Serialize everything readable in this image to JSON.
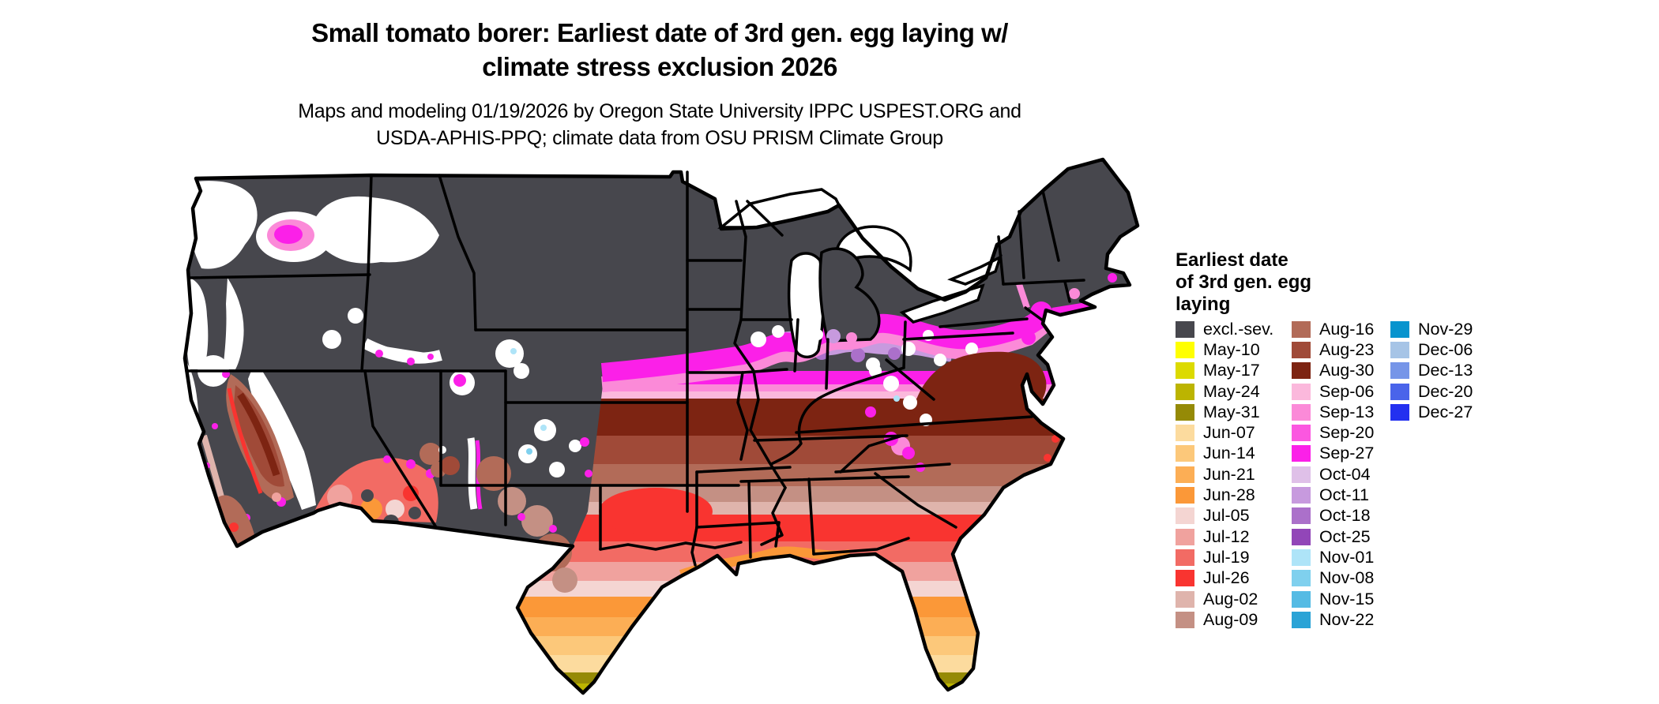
{
  "title": {
    "line1": "Small tomato borer: Earliest date of 3rd gen. egg laying w/",
    "line2": "climate stress exclusion 2026"
  },
  "subtitle": {
    "line1": "Maps and modeling 01/19/2026 by Oregon State University IPPC USPEST.ORG and",
    "line2": "USDA-APHIS-PPQ; climate data from OSU PRISM Climate Group"
  },
  "legend": {
    "title_lines": [
      "Earliest date",
      "of 3rd gen. egg",
      "laying"
    ],
    "columns": [
      [
        {
          "label": "excl.-sev.",
          "key": "excl"
        },
        {
          "label": "May-10",
          "key": "may10"
        },
        {
          "label": "May-17",
          "key": "may17"
        },
        {
          "label": "May-24",
          "key": "may24"
        },
        {
          "label": "May-31",
          "key": "may31"
        },
        {
          "label": "Jun-07",
          "key": "jun07"
        },
        {
          "label": "Jun-14",
          "key": "jun14"
        },
        {
          "label": "Jun-21",
          "key": "jun21"
        },
        {
          "label": "Jun-28",
          "key": "jun28"
        },
        {
          "label": "Jul-05",
          "key": "jul05"
        },
        {
          "label": "Jul-12",
          "key": "jul12"
        },
        {
          "label": "Jul-19",
          "key": "jul19"
        },
        {
          "label": "Jul-26",
          "key": "jul26"
        },
        {
          "label": "Aug-02",
          "key": "aug02"
        },
        {
          "label": "Aug-09",
          "key": "aug09"
        }
      ],
      [
        {
          "label": "Aug-16",
          "key": "aug16"
        },
        {
          "label": "Aug-23",
          "key": "aug23"
        },
        {
          "label": "Aug-30",
          "key": "aug30"
        },
        {
          "label": "Sep-06",
          "key": "sep06"
        },
        {
          "label": "Sep-13",
          "key": "sep13"
        },
        {
          "label": "Sep-20",
          "key": "sep20"
        },
        {
          "label": "Sep-27",
          "key": "sep27"
        },
        {
          "label": "Oct-04",
          "key": "oct04"
        },
        {
          "label": "Oct-11",
          "key": "oct11"
        },
        {
          "label": "Oct-18",
          "key": "oct18"
        },
        {
          "label": "Oct-25",
          "key": "oct25"
        },
        {
          "label": "Nov-01",
          "key": "nov01"
        },
        {
          "label": "Nov-08",
          "key": "nov08"
        },
        {
          "label": "Nov-15",
          "key": "nov15"
        },
        {
          "label": "Nov-22",
          "key": "nov22"
        }
      ],
      [
        {
          "label": "Nov-29",
          "key": "nov29"
        },
        {
          "label": "Dec-06",
          "key": "dec06"
        },
        {
          "label": "Dec-13",
          "key": "dec13"
        },
        {
          "label": "Dec-20",
          "key": "dec20"
        },
        {
          "label": "Dec-27",
          "key": "dec27"
        }
      ]
    ]
  },
  "colors": {
    "excl": "#47474d",
    "may10": "#ffff00",
    "may17": "#dcda00",
    "may24": "#bcb400",
    "may31": "#958a06",
    "jun07": "#fcdb9e",
    "jun14": "#fcc87a",
    "jun21": "#fcae55",
    "jun28": "#fb9838",
    "jul05": "#f4d5d2",
    "jul12": "#f0a29e",
    "jul19": "#f26b64",
    "jul26": "#f93430",
    "aug02": "#dfb4ac",
    "aug09": "#c49084",
    "aug16": "#b26b58",
    "aug23": "#a04a38",
    "aug30": "#7d2412",
    "sep06": "#fbb8dc",
    "sep13": "#fb8ad8",
    "sep20": "#fb57e0",
    "sep27": "#fb20e8",
    "oct04": "#dfc0e8",
    "oct11": "#c79ade",
    "oct18": "#ab70ca",
    "oct25": "#9246b8",
    "nov01": "#aee4f8",
    "nov08": "#7fd0ee",
    "nov15": "#55bbe4",
    "nov22": "#2aa3d6",
    "nov29": "#0894ce",
    "dec06": "#a6c4e6",
    "dec13": "#7695e8",
    "dec20": "#4a64ea",
    "dec27": "#2330f0",
    "border": "#000000",
    "water": "#ffffff"
  }
}
